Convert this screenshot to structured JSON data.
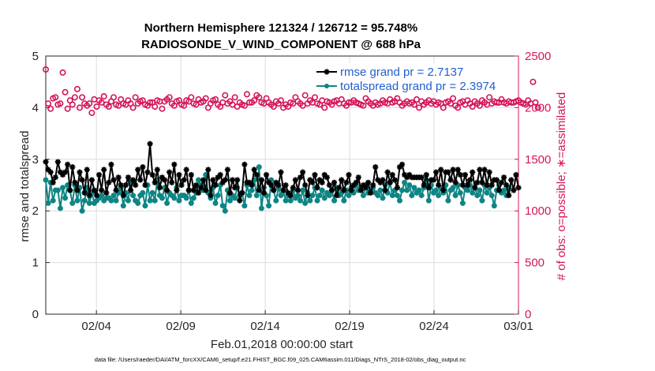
{
  "chart_data": {
    "type": "line",
    "title_lines": [
      "Northern Hemisphere 121324 / 126712 = 95.748%",
      "RADIOSONDE_V_WIND_COMPONENT @ 688 hPa"
    ],
    "xlabel": "Feb.01,2018 00:00:00 start",
    "ylabel_left": "rmse and totalspread",
    "ylabel_right": "# of obs: o=possible; ∗=assimilated",
    "x_ticks": [
      "02/04",
      "02/09",
      "02/14",
      "02/19",
      "02/24",
      "03/01"
    ],
    "x_tick_days": [
      3,
      8,
      13,
      18,
      23,
      28
    ],
    "x_range_days": [
      0,
      28
    ],
    "ylim_left": [
      0,
      5
    ],
    "yticks_left": [
      0,
      1,
      2,
      3,
      4,
      5
    ],
    "ylim_right": [
      0,
      2500
    ],
    "yticks_right": [
      0,
      500,
      1000,
      1500,
      2000,
      2500
    ],
    "grid": true,
    "legend_placement": "top-right",
    "footer": "data file: /Users/raeder/DAI/ATM_forcXX/CAM6_setup/f.e21.FHIST_BGC.f09_025.CAM6assim.011/Diags_NTrS_2018-02/obs_diag_output.nc",
    "colors": {
      "rmse": "#000000",
      "totalspread": "#0e8585",
      "obs": "#d4145a"
    },
    "series": [
      {
        "name": "rmse grand pr = 2.7137",
        "axis": "left",
        "marker": "star",
        "values": [
          2.95,
          2.8,
          2.75,
          2.55,
          2.65,
          2.95,
          2.75,
          2.7,
          2.75,
          2.9,
          2.4,
          2.85,
          2.55,
          2.4,
          2.75,
          2.6,
          2.35,
          2.8,
          2.3,
          2.6,
          2.4,
          2.3,
          2.7,
          2.4,
          2.8,
          2.35,
          2.55,
          2.9,
          2.6,
          2.4,
          2.65,
          2.5,
          2.3,
          2.5,
          2.65,
          2.4,
          2.6,
          2.5,
          2.8,
          2.6,
          2.85,
          2.5,
          2.75,
          3.3,
          2.7,
          2.55,
          2.8,
          2.45,
          2.65,
          2.6,
          2.4,
          2.75,
          2.55,
          2.9,
          2.4,
          2.7,
          2.5,
          2.6,
          2.8,
          2.4,
          2.7,
          2.4,
          2.5,
          2.35,
          2.45,
          2.6,
          2.4,
          2.8,
          2.3,
          2.6,
          2.5,
          2.65,
          2.7,
          2.55,
          2.6,
          2.8,
          2.35,
          2.6,
          2.45,
          2.6,
          2.2,
          2.35,
          2.9,
          2.55,
          2.55,
          2.5,
          2.8,
          2.7,
          2.4,
          2.6,
          2.35,
          2.7,
          2.55,
          2.5,
          2.4,
          2.55,
          2.5,
          2.75,
          2.4,
          2.5,
          2.35,
          2.3,
          2.45,
          2.6,
          2.4,
          2.65,
          2.75,
          2.5,
          2.3,
          2.6,
          2.55,
          2.7,
          2.45,
          2.6,
          2.55,
          2.7,
          2.65,
          2.5,
          2.4,
          2.55,
          2.3,
          2.45,
          2.6,
          2.4,
          2.55,
          2.7,
          2.4,
          2.5,
          2.55,
          2.65,
          2.4,
          2.5,
          2.45,
          2.55,
          2.35,
          2.5,
          2.85,
          2.6,
          2.55,
          2.6,
          2.4,
          2.75,
          2.55,
          2.7,
          2.6,
          2.45,
          2.85,
          2.9,
          2.7,
          2.65,
          2.7,
          2.65,
          2.65,
          2.65,
          2.65,
          2.65,
          2.5,
          2.7,
          2.45,
          2.6,
          2.6,
          2.75,
          2.5,
          2.8,
          2.4,
          2.75,
          2.75,
          2.6,
          2.8,
          2.55,
          2.8,
          2.7,
          2.5,
          2.7,
          2.5,
          2.6,
          2.75,
          2.45,
          2.55,
          2.8,
          2.55,
          2.8,
          2.5,
          2.75,
          2.5,
          2.6,
          2.6,
          2.4,
          2.55,
          2.65,
          2.5,
          2.3,
          2.6,
          2.4,
          2.7,
          2.45
        ]
      },
      {
        "name": "totalspread grand pr = 2.3974",
        "axis": "left",
        "marker": "circle",
        "values": [
          2.6,
          2.15,
          2.55,
          2.2,
          2.4,
          2.4,
          2.05,
          2.45,
          2.25,
          2.5,
          2.4,
          2.15,
          2.5,
          2.2,
          2.45,
          2.0,
          2.2,
          2.45,
          2.15,
          2.35,
          2.15,
          2.2,
          2.25,
          2.3,
          2.2,
          2.25,
          2.25,
          2.2,
          2.3,
          2.2,
          2.35,
          2.45,
          2.1,
          2.35,
          2.2,
          2.55,
          2.3,
          2.2,
          2.15,
          2.3,
          2.35,
          2.1,
          2.5,
          2.2,
          2.35,
          2.2,
          2.6,
          2.3,
          2.25,
          2.45,
          2.15,
          2.35,
          2.3,
          2.25,
          2.45,
          2.2,
          2.3,
          2.3,
          2.25,
          2.4,
          2.15,
          2.25,
          2.35,
          2.6,
          2.5,
          2.4,
          2.7,
          2.35,
          2.25,
          2.45,
          2.15,
          2.3,
          2.5,
          2.1,
          2.0,
          2.4,
          2.2,
          2.3,
          2.25,
          2.45,
          2.3,
          2.35,
          2.1,
          2.5,
          2.3,
          2.4,
          2.6,
          2.3,
          2.85,
          2.05,
          2.45,
          2.3,
          2.1,
          2.6,
          2.4,
          2.2,
          2.45,
          2.3,
          2.4,
          2.2,
          2.3,
          2.2,
          2.4,
          2.25,
          2.3,
          2.2,
          2.4,
          2.15,
          2.35,
          2.2,
          2.3,
          2.45,
          2.2,
          2.3,
          2.4,
          2.25,
          2.35,
          2.3,
          2.4,
          2.2,
          2.45,
          2.3,
          2.35,
          2.2,
          2.4,
          2.3,
          2.45,
          2.35,
          2.5,
          2.4,
          2.45,
          2.3,
          2.5,
          2.35,
          2.4,
          2.45,
          2.35,
          2.3,
          2.4,
          2.25,
          2.5,
          2.35,
          2.55,
          2.3,
          2.4,
          2.3,
          2.2,
          2.4,
          2.55,
          2.4,
          2.5,
          2.3,
          2.45,
          2.35,
          2.4,
          2.3,
          2.45,
          2.6,
          2.2,
          2.5,
          2.35,
          2.4,
          2.3,
          2.45,
          2.35,
          2.5,
          2.2,
          2.4,
          2.45,
          2.3,
          2.5,
          2.35,
          2.15,
          2.45,
          2.4,
          2.5,
          2.35,
          2.45,
          2.3,
          2.4,
          2.2,
          2.5,
          2.35,
          2.45,
          2.3,
          2.1,
          2.4,
          2.5,
          2.35,
          2.4,
          2.3,
          2.45
        ]
      },
      {
        "name": "possible obs",
        "axis": "right",
        "marker": "open-circle",
        "values": [
          2370,
          2040,
          1990,
          2090,
          2100,
          2030,
          2040,
          2340,
          2150,
          1990,
          2070,
          2030,
          2100,
          2180,
          2000,
          2100,
          2040,
          2020,
          2040,
          1950,
          2080,
          2010,
          2070,
          2050,
          2110,
          2030,
          2010,
          2060,
          2100,
          2030,
          2020,
          2080,
          2040,
          2030,
          2070,
          2040,
          2000,
          2100,
          2040,
          2060,
          2070,
          2030,
          2020,
          2050,
          2050,
          2010,
          2070,
          2060,
          1990,
          2060,
          2080,
          2100,
          2040,
          2020,
          2060,
          2070,
          2030,
          2020,
          2070,
          2060,
          2100,
          2040,
          2030,
          2080,
          2050,
          2060,
          2090,
          2000,
          2040,
          2070,
          2080,
          2030,
          2010,
          2050,
          2120,
          2040,
          2060,
          2030,
          2100,
          2010,
          2050,
          2030,
          2020,
          2130,
          2050,
          2050,
          2070,
          2120,
          2100,
          2050,
          2040,
          2090,
          2050,
          2030,
          2010,
          2060,
          2040,
          2070,
          2000,
          2030,
          2010,
          2050,
          2040,
          2100,
          2060,
          2040,
          2020,
          2120,
          2040,
          2070,
          2050,
          2100,
          2040,
          2030,
          2070,
          2000,
          2060,
          2050,
          2030,
          2060,
          2070,
          2040,
          2080,
          2040,
          2020,
          2050,
          2050,
          2070,
          2050,
          2040,
          2030,
          2020,
          2090,
          2060,
          2040,
          2020,
          2050,
          2030,
          2040,
          2070,
          2050,
          2040,
          2080,
          2050,
          2060,
          2090,
          2050,
          2020,
          2040,
          2060,
          2040,
          2050,
          2030,
          2080,
          2000,
          2060,
          2030,
          2050,
          2070,
          2040,
          2060,
          2030,
          2050,
          2040,
          2000,
          2050,
          2060,
          2040,
          2090,
          2020,
          2000,
          2050,
          2060,
          2030,
          2070,
          2040,
          2010,
          2060,
          2040,
          2020,
          2070,
          2050,
          2030,
          2100,
          2040,
          2060,
          2050,
          2050,
          2080,
          2050,
          2040,
          2060,
          2050,
          2050,
          2060,
          2070,
          2050,
          2040,
          2030,
          2070,
          2040,
          2250,
          2050,
          2000
        ]
      }
    ]
  }
}
